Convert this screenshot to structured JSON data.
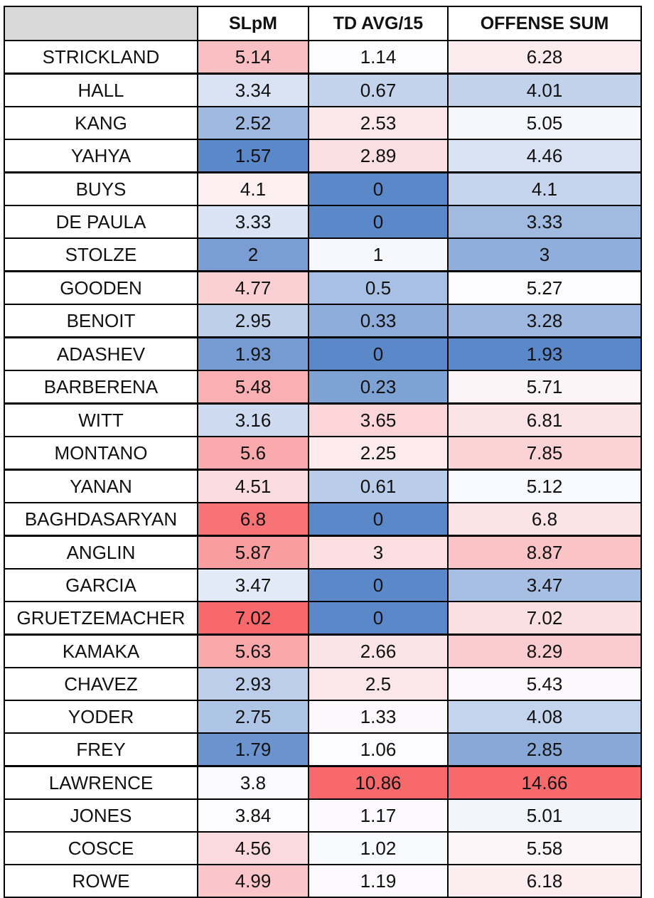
{
  "headers": [
    "",
    "SLpM",
    "TD AVG/15",
    "OFFENSE SUM"
  ],
  "rows": [
    {
      "name": "STRICKLAND",
      "slpm": "5.14",
      "td": "1.14",
      "off": "6.28",
      "group_start": false
    },
    {
      "name": "HALL",
      "slpm": "3.34",
      "td": "0.67",
      "off": "4.01",
      "group_start": true
    },
    {
      "name": "KANG",
      "slpm": "2.52",
      "td": "2.53",
      "off": "5.05",
      "group_start": false
    },
    {
      "name": "YAHYA",
      "slpm": "1.57",
      "td": "2.89",
      "off": "4.46",
      "group_start": false
    },
    {
      "name": "BUYS",
      "slpm": "4.1",
      "td": "0",
      "off": "4.1",
      "group_start": true
    },
    {
      "name": "DE PAULA",
      "slpm": "3.33",
      "td": "0",
      "off": "3.33",
      "group_start": false
    },
    {
      "name": "STOLZE",
      "slpm": "2",
      "td": "1",
      "off": "3",
      "group_start": false
    },
    {
      "name": "GOODEN",
      "slpm": "4.77",
      "td": "0.5",
      "off": "5.27",
      "group_start": true
    },
    {
      "name": "BENOIT",
      "slpm": "2.95",
      "td": "0.33",
      "off": "3.28",
      "group_start": false
    },
    {
      "name": "ADASHEV",
      "slpm": "1.93",
      "td": "0",
      "off": "1.93",
      "group_start": true
    },
    {
      "name": "BARBERENA",
      "slpm": "5.48",
      "td": "0.23",
      "off": "5.71",
      "group_start": false
    },
    {
      "name": "WITT",
      "slpm": "3.16",
      "td": "3.65",
      "off": "6.81",
      "group_start": true
    },
    {
      "name": "MONTANO",
      "slpm": "5.6",
      "td": "2.25",
      "off": "7.85",
      "group_start": false
    },
    {
      "name": "YANAN",
      "slpm": "4.51",
      "td": "0.61",
      "off": "5.12",
      "group_start": true
    },
    {
      "name": "BAGHDASARYAN",
      "slpm": "6.8",
      "td": "0",
      "off": "6.8",
      "group_start": false
    },
    {
      "name": "ANGLIN",
      "slpm": "5.87",
      "td": "3",
      "off": "8.87",
      "group_start": true
    },
    {
      "name": "GARCIA",
      "slpm": "3.47",
      "td": "0",
      "off": "3.47",
      "group_start": false
    },
    {
      "name": "GRUETZEMACHER",
      "slpm": "7.02",
      "td": "0",
      "off": "7.02",
      "group_start": false
    },
    {
      "name": "KAMAKA",
      "slpm": "5.63",
      "td": "2.66",
      "off": "8.29",
      "group_start": true
    },
    {
      "name": "CHAVEZ",
      "slpm": "2.93",
      "td": "2.5",
      "off": "5.43",
      "group_start": false
    },
    {
      "name": "YODER",
      "slpm": "2.75",
      "td": "1.33",
      "off": "4.08",
      "group_start": false
    },
    {
      "name": "FREY",
      "slpm": "1.79",
      "td": "1.06",
      "off": "2.85",
      "group_start": false
    },
    {
      "name": "LAWRENCE",
      "slpm": "3.8",
      "td": "10.86",
      "off": "14.66",
      "group_start": true
    },
    {
      "name": "JONES",
      "slpm": "3.84",
      "td": "1.17",
      "off": "5.01",
      "group_start": false
    },
    {
      "name": "COSCE",
      "slpm": "4.56",
      "td": "1.02",
      "off": "5.58",
      "group_start": false
    },
    {
      "name": "ROWE",
      "slpm": "4.99",
      "td": "1.19",
      "off": "6.18",
      "group_start": false
    }
  ],
  "color_scale": {
    "low": "#5b88c9",
    "mid": "#fcfcff",
    "high": "#f8696b"
  }
}
